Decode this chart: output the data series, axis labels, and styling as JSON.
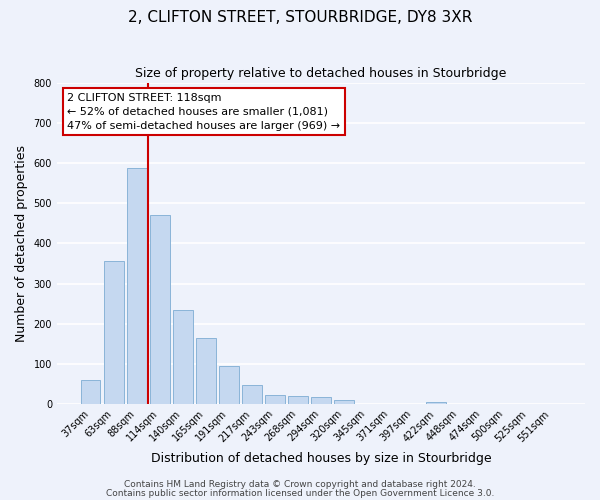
{
  "title": "2, CLIFTON STREET, STOURBRIDGE, DY8 3XR",
  "subtitle": "Size of property relative to detached houses in Stourbridge",
  "xlabel": "Distribution of detached houses by size in Stourbridge",
  "ylabel": "Number of detached properties",
  "bar_labels": [
    "37sqm",
    "63sqm",
    "88sqm",
    "114sqm",
    "140sqm",
    "165sqm",
    "191sqm",
    "217sqm",
    "243sqm",
    "268sqm",
    "294sqm",
    "320sqm",
    "345sqm",
    "371sqm",
    "397sqm",
    "422sqm",
    "448sqm",
    "474sqm",
    "500sqm",
    "525sqm",
    "551sqm"
  ],
  "bar_values": [
    60,
    357,
    588,
    470,
    235,
    163,
    95,
    48,
    22,
    20,
    16,
    10,
    0,
    0,
    0,
    5,
    0,
    0,
    0,
    0,
    0
  ],
  "bar_color": "#c5d8f0",
  "bar_edge_color": "#8ab4d8",
  "vline_color": "#cc0000",
  "ylim": [
    0,
    800
  ],
  "yticks": [
    0,
    100,
    200,
    300,
    400,
    500,
    600,
    700,
    800
  ],
  "annotation_title": "2 CLIFTON STREET: 118sqm",
  "annotation_line1": "← 52% of detached houses are smaller (1,081)",
  "annotation_line2": "47% of semi-detached houses are larger (969) →",
  "annotation_box_color": "#ffffff",
  "annotation_box_edge": "#cc0000",
  "footer1": "Contains HM Land Registry data © Crown copyright and database right 2024.",
  "footer2": "Contains public sector information licensed under the Open Government Licence 3.0.",
  "background_color": "#eef2fb",
  "grid_color": "#ffffff",
  "title_fontsize": 11,
  "subtitle_fontsize": 9,
  "axis_label_fontsize": 9,
  "tick_fontsize": 7,
  "footer_fontsize": 6.5,
  "annotation_fontsize": 8
}
